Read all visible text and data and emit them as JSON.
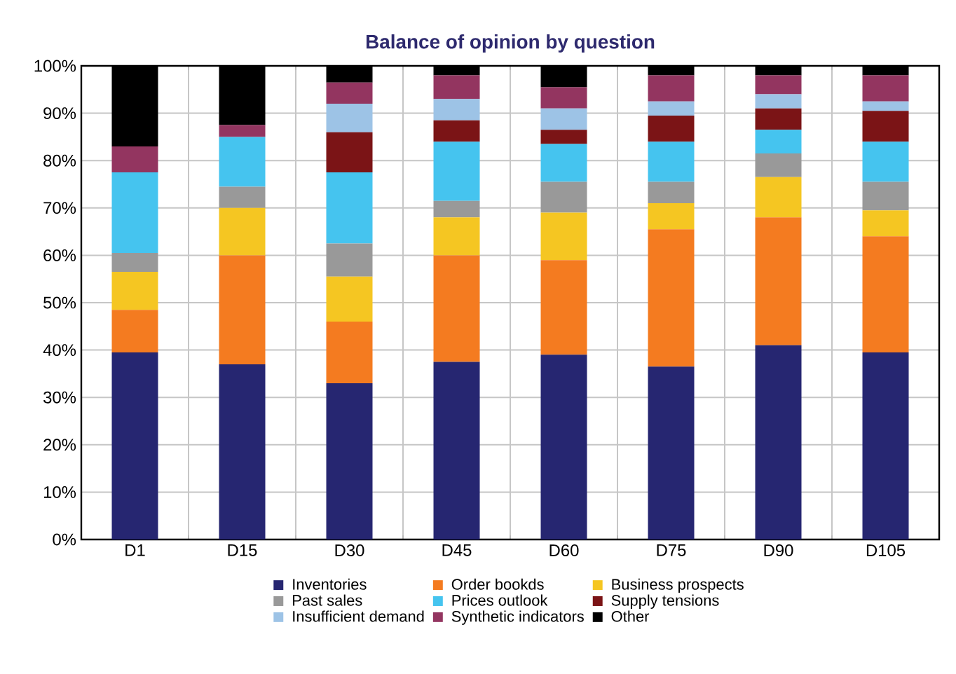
{
  "chart_data": {
    "type": "bar",
    "title": "Balance of opinion by question",
    "stacked": true,
    "grid": true,
    "legend": "bottom",
    "categories": [
      "D1",
      "D15",
      "D30",
      "D45",
      "D60",
      "D75",
      "D90",
      "D105"
    ],
    "ylim": [
      0,
      100
    ],
    "yticks": [
      {
        "value": 0,
        "label": "0%"
      },
      {
        "value": 10,
        "label": "10%"
      },
      {
        "value": 20,
        "label": "20%"
      },
      {
        "value": 30,
        "label": "30%"
      },
      {
        "value": 40,
        "label": "40%"
      },
      {
        "value": 50,
        "label": "50%"
      },
      {
        "value": 60,
        "label": "60%"
      },
      {
        "value": 70,
        "label": "70%"
      },
      {
        "value": 80,
        "label": "80%"
      },
      {
        "value": 90,
        "label": "90%"
      },
      {
        "value": 100,
        "label": "100%"
      }
    ],
    "series": [
      {
        "name": "Inventories",
        "color": "#262671",
        "values": [
          39.5,
          37,
          33,
          37.5,
          39,
          36.5,
          41,
          39.5
        ]
      },
      {
        "name": "Order bookds",
        "color": "#f47b20",
        "values": [
          9,
          23,
          13,
          22.5,
          20,
          29,
          27,
          24.5
        ]
      },
      {
        "name": "Business prospects",
        "color": "#f5c622",
        "values": [
          8,
          10,
          9.5,
          8,
          10,
          5.5,
          8.5,
          5.5
        ]
      },
      {
        "name": "Past sales",
        "color": "#999999",
        "values": [
          4,
          4.5,
          7,
          3.5,
          6.5,
          4.5,
          5,
          6
        ]
      },
      {
        "name": "Prices outlook",
        "color": "#45c4ef",
        "values": [
          17,
          10.5,
          15,
          12.5,
          8,
          8.5,
          5,
          8.5
        ]
      },
      {
        "name": "Supply tensions",
        "color": "#7b1416",
        "values": [
          0,
          0,
          8.5,
          4.5,
          3,
          5.5,
          4.5,
          6.5
        ]
      },
      {
        "name": "Insufficient demand",
        "color": "#9dc3e6",
        "values": [
          0,
          0,
          6,
          4.5,
          4.5,
          3,
          3,
          2
        ]
      },
      {
        "name": "Synthetic indicators",
        "color": "#933560",
        "values": [
          5.5,
          2.5,
          4.5,
          5,
          4.5,
          5.5,
          4,
          5.5
        ]
      },
      {
        "name": "Other",
        "color": "#000000",
        "values": [
          17,
          12.5,
          3.5,
          2,
          4.5,
          2,
          2,
          2
        ]
      }
    ]
  }
}
